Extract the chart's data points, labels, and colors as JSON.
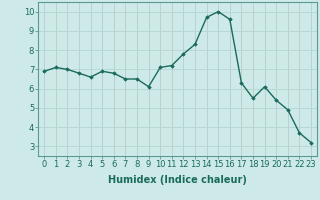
{
  "x": [
    0,
    1,
    2,
    3,
    4,
    5,
    6,
    7,
    8,
    9,
    10,
    11,
    12,
    13,
    14,
    15,
    16,
    17,
    18,
    19,
    20,
    21,
    22,
    23
  ],
  "y": [
    6.9,
    7.1,
    7.0,
    6.8,
    6.6,
    6.9,
    6.8,
    6.5,
    6.5,
    6.1,
    7.1,
    7.2,
    7.8,
    8.3,
    9.7,
    10.0,
    9.6,
    6.3,
    5.5,
    6.1,
    5.4,
    4.9,
    3.7,
    3.2
  ],
  "line_color": "#1a6b5a",
  "marker": "D",
  "marker_size": 1.8,
  "linewidth": 1.0,
  "bg_color": "#ceeae8",
  "grid_color_major": "#b8d8d5",
  "grid_color_minor": "#d4ecea",
  "xlabel": "Humidex (Indice chaleur)",
  "xlabel_fontsize": 7,
  "tick_fontsize": 6,
  "ylim": [
    2.5,
    10.5
  ],
  "xlim": [
    -0.5,
    23.5
  ],
  "yticks": [
    3,
    4,
    5,
    6,
    7,
    8,
    9,
    10
  ],
  "xticks": [
    0,
    1,
    2,
    3,
    4,
    5,
    6,
    7,
    8,
    9,
    10,
    11,
    12,
    13,
    14,
    15,
    16,
    17,
    18,
    19,
    20,
    21,
    22,
    23
  ]
}
